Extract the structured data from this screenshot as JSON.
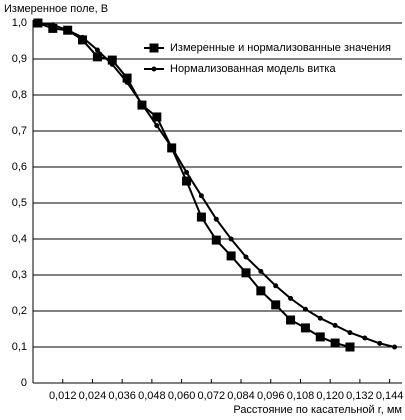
{
  "chart_data": {
    "type": "line",
    "y_axis_title": "Измеренное поле, В",
    "x_axis_title": "Расстояние по касательной r, мм",
    "xlim": [
      0,
      0.149
    ],
    "ylim": [
      0,
      1.0
    ],
    "xticks": [
      {
        "value": 0.012,
        "label": "0,012"
      },
      {
        "value": 0.024,
        "label": "0,024"
      },
      {
        "value": 0.036,
        "label": "0,036"
      },
      {
        "value": 0.048,
        "label": "0,048"
      },
      {
        "value": 0.06,
        "label": "0,060"
      },
      {
        "value": 0.072,
        "label": "0,072"
      },
      {
        "value": 0.084,
        "label": "0,084"
      },
      {
        "value": 0.096,
        "label": "0,096"
      },
      {
        "value": 0.108,
        "label": "0,108"
      },
      {
        "value": 0.12,
        "label": "0,120"
      },
      {
        "value": 0.132,
        "label": "0,132"
      },
      {
        "value": 0.144,
        "label": "0,144"
      }
    ],
    "yticks": [
      0,
      {
        "value": 0.1,
        "label": "0,1"
      },
      {
        "value": 0.2,
        "label": "0,2"
      },
      {
        "value": 0.3,
        "label": "0,3"
      },
      {
        "value": 0.4,
        "label": "0,4"
      },
      {
        "value": 0.5,
        "label": "0,5"
      },
      {
        "value": 0.6,
        "label": "0,6"
      },
      {
        "value": 0.7,
        "label": "0,7"
      },
      {
        "value": 0.8,
        "label": "0,8"
      },
      {
        "value": 0.9,
        "label": "0,9"
      },
      {
        "value": 1.0,
        "label": "1,0"
      }
    ],
    "grid": true,
    "series": [
      {
        "name": "Измеренные и нормализованные значения",
        "color": "#000000",
        "marker": "square",
        "x": [
          0.002,
          0.008,
          0.014,
          0.02,
          0.026,
          0.032,
          0.038,
          0.044,
          0.05,
          0.056,
          0.062,
          0.068,
          0.074,
          0.08,
          0.086,
          0.092,
          0.098,
          0.104,
          0.11,
          0.116,
          0.122,
          0.128
        ],
        "values": [
          1.0,
          0.985,
          0.98,
          0.953,
          0.906,
          0.897,
          0.847,
          0.772,
          0.739,
          0.653,
          0.561,
          0.461,
          0.397,
          0.353,
          0.306,
          0.256,
          0.217,
          0.175,
          0.153,
          0.128,
          0.111,
          0.1
        ]
      },
      {
        "name": "Нормализованная модель витка",
        "color": "#000000",
        "marker": "circle",
        "x": [
          0.002,
          0.008,
          0.014,
          0.02,
          0.026,
          0.032,
          0.038,
          0.044,
          0.05,
          0.056,
          0.062,
          0.068,
          0.074,
          0.08,
          0.086,
          0.092,
          0.098,
          0.104,
          0.11,
          0.116,
          0.122,
          0.128,
          0.134,
          0.14,
          0.146
        ],
        "values": [
          1.0,
          0.995,
          0.98,
          0.96,
          0.925,
          0.885,
          0.835,
          0.775,
          0.715,
          0.655,
          0.585,
          0.52,
          0.455,
          0.4,
          0.35,
          0.31,
          0.27,
          0.235,
          0.205,
          0.18,
          0.16,
          0.14,
          0.125,
          0.11,
          0.1
        ]
      }
    ]
  }
}
